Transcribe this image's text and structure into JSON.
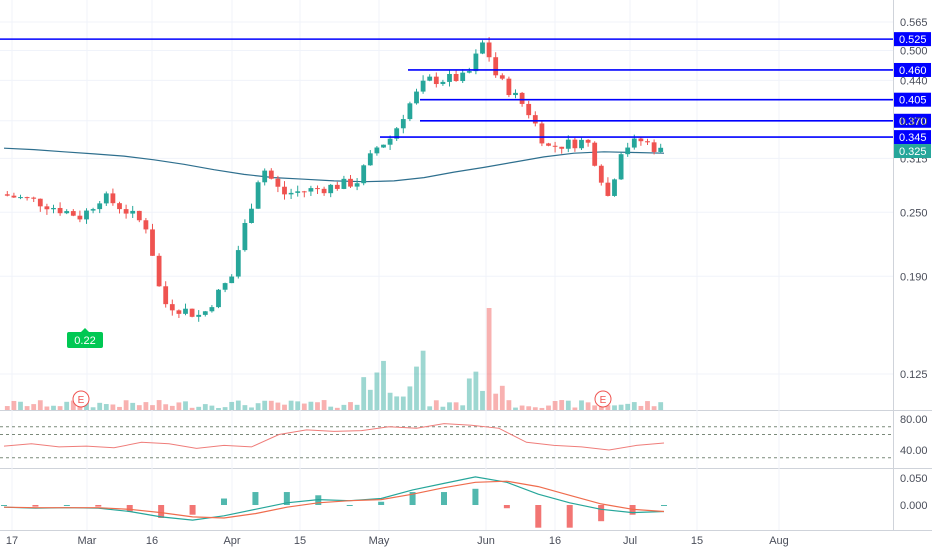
{
  "chart_data": [
    {
      "type": "candlestick",
      "title": "",
      "y_axis": {
        "ticks": [
          "0.565",
          "0.500",
          "0.440",
          "0.370",
          "0.315",
          "0.250",
          "0.190",
          "0.125"
        ],
        "scale": "log"
      },
      "x_axis": {
        "ticks": [
          "17",
          "Mar",
          "16",
          "Apr",
          "15",
          "May",
          "Jun",
          "16",
          "Jul",
          "15",
          "Aug"
        ]
      },
      "current_price": "0.325",
      "horizontal_levels": [
        "0.525",
        "0.460",
        "0.405",
        "0.370",
        "0.345"
      ],
      "moving_average": [
        0.329,
        0.327,
        0.324,
        0.321,
        0.318,
        0.313,
        0.307,
        0.3,
        0.294,
        0.29,
        0.288,
        0.286,
        0.285,
        0.286,
        0.29,
        0.297,
        0.303,
        0.31,
        0.317,
        0.322,
        0.324,
        0.323,
        0.322
      ],
      "annotations": [
        {
          "label": "0.22",
          "type": "callout"
        },
        {
          "label": "E",
          "type": "event"
        },
        {
          "label": "E",
          "type": "event"
        }
      ],
      "colors": {
        "up": "#26a69a",
        "down": "#ef5350",
        "level": "#0000ff",
        "ma": "#2e6f8e"
      }
    },
    {
      "type": "line",
      "name": "oscillator",
      "y_axis": {
        "ticks": [
          "80.00",
          "40.00"
        ]
      },
      "guide_levels": [
        70,
        60,
        30
      ],
      "series": [
        {
          "values": [
            45,
            48,
            44,
            45,
            43,
            50,
            48,
            42,
            46,
            44,
            60,
            66,
            64,
            65,
            70,
            68,
            74,
            72,
            68,
            50,
            46,
            44,
            40,
            46,
            49
          ]
        }
      ]
    },
    {
      "type": "line",
      "name": "macd",
      "y_axis": {
        "ticks": [
          "0.050",
          "0.000"
        ]
      },
      "series": [
        {
          "values": [
            -0.004,
            -0.006,
            -0.005,
            -0.006,
            -0.012,
            -0.022,
            -0.028,
            -0.02,
            -0.008,
            0.004,
            0.01,
            0.008,
            0.012,
            0.028,
            0.04,
            0.052,
            0.042,
            0.02,
            0.004,
            -0.008,
            -0.014,
            -0.012
          ],
          "color": "#26a69a"
        },
        {
          "values": [
            -0.004,
            -0.005,
            -0.005,
            -0.005,
            -0.008,
            -0.014,
            -0.022,
            -0.024,
            -0.016,
            -0.004,
            0.004,
            0.008,
            0.01,
            0.02,
            0.032,
            0.042,
            0.044,
            0.034,
            0.018,
            0.002,
            -0.008,
            -0.012
          ],
          "color": "#ef6c4d"
        }
      ]
    }
  ]
}
